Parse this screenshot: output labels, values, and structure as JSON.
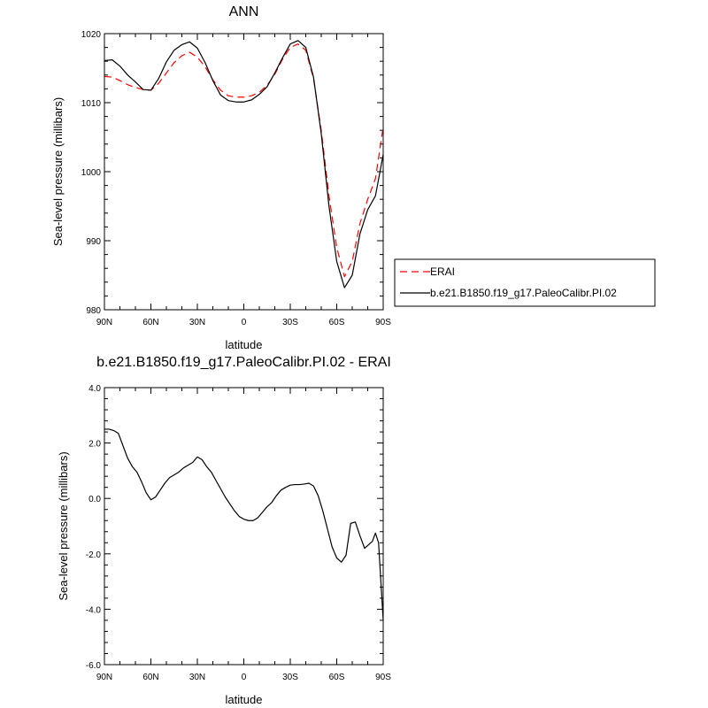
{
  "chart_data": [
    {
      "type": "line",
      "title": "ANN",
      "xlabel": "latitude",
      "ylabel": "Sea-level pressure (millibars)",
      "xlim": [
        90,
        -90
      ],
      "ylim": [
        980,
        1020
      ],
      "x_ticks": [
        90,
        60,
        30,
        0,
        -30,
        -60,
        -90
      ],
      "x_tick_labels": [
        "90N",
        "60N",
        "30N",
        "0",
        "30S",
        "60S",
        "90S"
      ],
      "y_ticks": [
        980,
        990,
        1000,
        1010,
        1020
      ],
      "y_tick_labels": [
        "980",
        "990",
        "1000",
        "1010",
        "1020"
      ],
      "legend_position": "right, outside plot",
      "series": [
        {
          "name": "ERAI",
          "color": "#ff0000",
          "style": "dashed",
          "x": [
            90,
            85,
            80,
            75,
            70,
            65,
            60,
            55,
            50,
            45,
            40,
            35,
            30,
            25,
            20,
            15,
            10,
            5,
            0,
            -5,
            -10,
            -15,
            -20,
            -25,
            -30,
            -35,
            -40,
            -45,
            -50,
            -55,
            -60,
            -65,
            -70,
            -75,
            -80,
            -85,
            -90
          ],
          "y": [
            1013.8,
            1013.7,
            1013.2,
            1012.6,
            1012.2,
            1011.9,
            1011.8,
            1012.8,
            1014.3,
            1015.8,
            1016.8,
            1017.3,
            1016.6,
            1015.2,
            1013.3,
            1011.8,
            1011.0,
            1010.8,
            1010.8,
            1011.0,
            1011.5,
            1012.5,
            1014.1,
            1016.3,
            1018.0,
            1018.5,
            1017.6,
            1013.5,
            1006.0,
            996.5,
            989.0,
            984.8,
            987.0,
            992.5,
            996.0,
            999.0,
            1006.5
          ]
        },
        {
          "name": "b.e21.B1850.f19_g17.PaleoCalibr.PI.02",
          "color": "#000000",
          "style": "solid",
          "x": [
            90,
            85,
            80,
            75,
            70,
            65,
            60,
            55,
            50,
            45,
            40,
            35,
            30,
            25,
            20,
            15,
            10,
            5,
            0,
            -5,
            -10,
            -15,
            -20,
            -25,
            -30,
            -35,
            -40,
            -45,
            -50,
            -55,
            -60,
            -65,
            -70,
            -75,
            -80,
            -85,
            -90
          ],
          "y": [
            1016.1,
            1016.2,
            1015.3,
            1014.0,
            1013.0,
            1011.9,
            1011.8,
            1013.5,
            1015.9,
            1017.6,
            1018.4,
            1018.8,
            1017.9,
            1015.8,
            1013.2,
            1011.1,
            1010.3,
            1010.1,
            1010.1,
            1010.4,
            1011.2,
            1012.3,
            1014.3,
            1016.5,
            1018.5,
            1019.0,
            1018.0,
            1013.7,
            1005.5,
            995.0,
            987.0,
            983.2,
            985.0,
            991.0,
            994.5,
            996.5,
            1002.5
          ]
        }
      ]
    },
    {
      "type": "line",
      "title": "b.e21.B1850.f19_g17.PaleoCalibr.PI.02 - ERAI",
      "xlabel": "latitude",
      "ylabel": "Sea-level pressure (millibars)",
      "xlim": [
        90,
        -90
      ],
      "ylim": [
        -6.0,
        4.0
      ],
      "x_ticks": [
        90,
        60,
        30,
        0,
        -30,
        -60,
        -90
      ],
      "x_tick_labels": [
        "90N",
        "60N",
        "30N",
        "0",
        "30S",
        "60S",
        "90S"
      ],
      "y_ticks": [
        -6.0,
        -4.0,
        -2.0,
        0.0,
        2.0,
        4.0
      ],
      "y_tick_labels": [
        "-6.0",
        "-4.0",
        "-2.0",
        "0.0",
        "2.0",
        "4.0"
      ],
      "series": [
        {
          "color": "#000000",
          "style": "solid",
          "x": [
            90,
            87,
            84,
            81,
            78,
            75,
            72,
            69,
            66,
            63,
            60,
            57,
            54,
            51,
            48,
            45,
            42,
            39,
            36,
            33,
            30,
            27,
            24,
            21,
            18,
            15,
            12,
            9,
            6,
            3,
            0,
            -3,
            -6,
            -9,
            -12,
            -15,
            -18,
            -21,
            -24,
            -27,
            -30,
            -33,
            -36,
            -39,
            -42,
            -45,
            -48,
            -51,
            -54,
            -57,
            -60,
            -63,
            -66,
            -69,
            -72,
            -75,
            -78,
            -81,
            -83,
            -85,
            -87,
            -90
          ],
          "y": [
            2.5,
            2.5,
            2.45,
            2.35,
            1.9,
            1.45,
            1.15,
            0.95,
            0.6,
            0.2,
            -0.05,
            0.05,
            0.3,
            0.55,
            0.75,
            0.85,
            0.95,
            1.1,
            1.2,
            1.3,
            1.5,
            1.4,
            1.15,
            0.95,
            0.65,
            0.35,
            0.05,
            -0.2,
            -0.45,
            -0.65,
            -0.75,
            -0.8,
            -0.8,
            -0.7,
            -0.5,
            -0.3,
            -0.15,
            0.1,
            0.3,
            0.4,
            0.48,
            0.5,
            0.5,
            0.52,
            0.55,
            0.45,
            0.1,
            -0.45,
            -1.1,
            -1.75,
            -2.15,
            -2.3,
            -2.05,
            -0.9,
            -0.85,
            -1.35,
            -1.8,
            -1.65,
            -1.55,
            -1.25,
            -1.6,
            -4.4
          ]
        }
      ]
    }
  ]
}
